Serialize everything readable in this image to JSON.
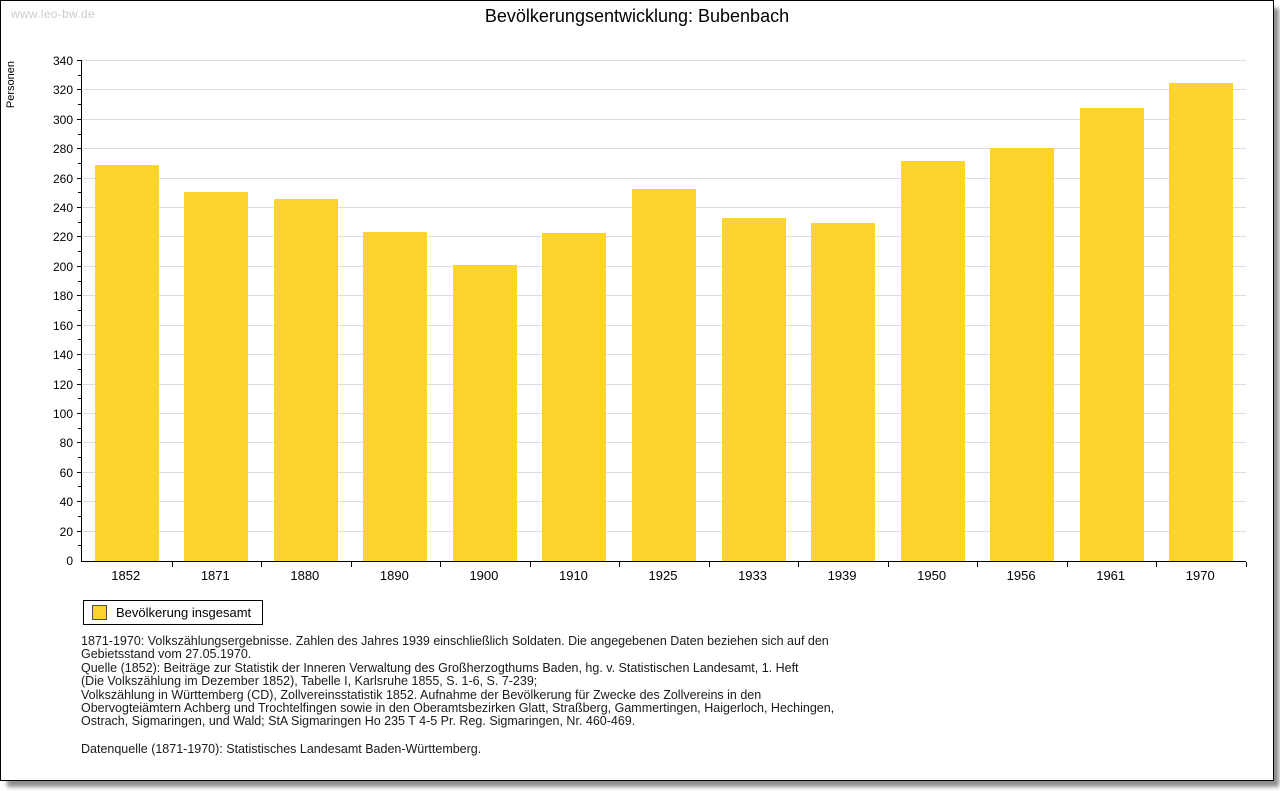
{
  "page": {
    "watermark": "www.leo-bw.de",
    "title": "Bevölkerungsentwicklung: Bubenbach"
  },
  "chart_data": {
    "type": "bar",
    "title": "Bevölkerungsentwicklung: Bubenbach",
    "xlabel": "",
    "ylabel": "Personen",
    "categories": [
      "1852",
      "1871",
      "1880",
      "1890",
      "1900",
      "1910",
      "1925",
      "1933",
      "1939",
      "1950",
      "1956",
      "1961",
      "1970"
    ],
    "values": [
      269,
      251,
      246,
      224,
      201,
      223,
      253,
      233,
      230,
      272,
      281,
      308,
      325
    ],
    "series_name": "Bevölkerung insgesamt",
    "ylim": [
      0,
      340
    ],
    "ytick_step": 20,
    "yminor_step": 10,
    "grid": true,
    "legend_position": "bottom-left",
    "bar_color": "#FDD32E",
    "grid_color": "#dcdcdc"
  },
  "legend": {
    "label": "Bevölkerung insgesamt",
    "swatch_color": "#FDD32E"
  },
  "notes": {
    "lines": [
      "1871-1970: Volkszählungsergebnisse. Zahlen des Jahres 1939 einschließlich Soldaten. Die angegebenen Daten beziehen sich auf den",
      "Gebietsstand vom 27.05.1970.",
      "Quelle (1852): Beiträge zur Statistik der Inneren Verwaltung des Großherzogthums Baden, hg. v. Statistischen Landesamt, 1. Heft",
      "(Die Volkszählung im Dezember 1852), Tabelle I, Karlsruhe 1855, S. 1-6, S. 7-239;",
      "Volkszählung in Württemberg (CD), Zollvereinsstatistik 1852. Aufnahme der Bevölkerung für Zwecke des Zollvereins in den",
      "Obervogteiämtern Achberg und Trochtelfingen sowie in den Oberamtsbezirken Glatt, Straßberg, Gammertingen, Haigerloch, Hechingen,",
      "Ostrach, Sigmaringen, und Wald; StA Sigmaringen Ho 235 T 4-5 Pr. Reg. Sigmaringen, Nr. 460-469."
    ],
    "source": "Datenquelle (1871-1970): Statistisches Landesamt Baden-Württemberg."
  }
}
